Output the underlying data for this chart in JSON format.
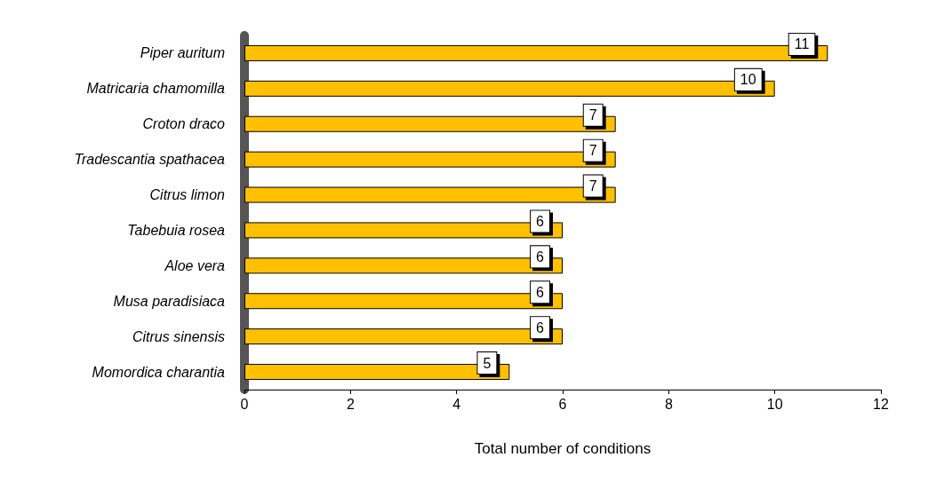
{
  "chart_data": {
    "type": "bar",
    "orientation": "horizontal",
    "xlabel": "Total number of conditions",
    "categories": [
      "Piper auritum",
      "Matricaria chamomilla",
      "Croton draco",
      "Tradescantia spathacea",
      "Citrus limon",
      "Tabebuia rosea",
      "Aloe vera",
      "Musa paradisiaca",
      "Citrus sinensis",
      "Momordica charantia"
    ],
    "values": [
      11,
      10,
      7,
      7,
      7,
      6,
      6,
      6,
      6,
      5
    ],
    "color": "#ffc000",
    "xlim": [
      0,
      12
    ],
    "xticks": [
      0,
      2,
      4,
      6,
      8,
      10,
      12
    ],
    "grid": false,
    "data_labels": true
  }
}
